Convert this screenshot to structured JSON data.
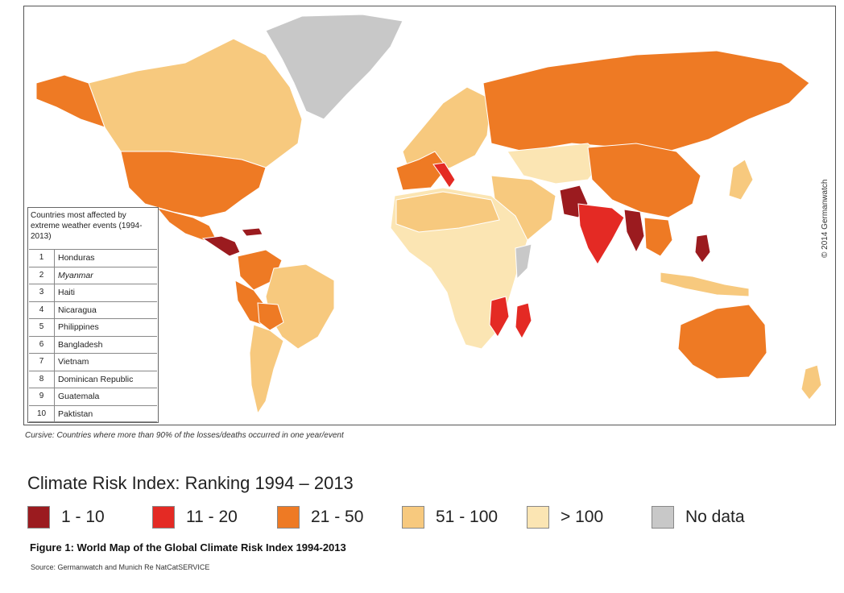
{
  "map": {
    "copyright": "© 2014 Germanwatch",
    "colors": {
      "rank_1_10": "#9b1b1f",
      "rank_11_20": "#e42a24",
      "rank_21_50": "#ee7a24",
      "rank_51_100": "#f7c97e",
      "rank_over_100": "#fbe5b3",
      "no_data": "#c8c8c8",
      "border": "#ffffff"
    }
  },
  "ranking_box": {
    "title": "Countries most affected by extreme weather events (1994-2013)",
    "items": [
      {
        "rank": "1",
        "country": "Honduras",
        "cursive": false
      },
      {
        "rank": "2",
        "country": "Myanmar",
        "cursive": true
      },
      {
        "rank": "3",
        "country": "Haiti",
        "cursive": false
      },
      {
        "rank": "4",
        "country": "Nicaragua",
        "cursive": false
      },
      {
        "rank": "5",
        "country": "Philippines",
        "cursive": false
      },
      {
        "rank": "6",
        "country": "Bangladesh",
        "cursive": false
      },
      {
        "rank": "7",
        "country": "Vietnam",
        "cursive": false
      },
      {
        "rank": "8",
        "country": "Dominican Republic",
        "cursive": false
      },
      {
        "rank": "9",
        "country": "Guatemala",
        "cursive": false
      },
      {
        "rank": "10",
        "country": "Paktistan",
        "cursive": false
      }
    ]
  },
  "cursive_note": "Cursive: Countries where more than 90% of the losses/deaths occurred in one year/event",
  "legend": {
    "title": "Climate Risk Index: Ranking 1994 – 2013",
    "items": [
      {
        "label": "1 - 10",
        "color": "#9b1b1f"
      },
      {
        "label": "11 - 20",
        "color": "#e42a24"
      },
      {
        "label": "21 - 50",
        "color": "#ee7a24"
      },
      {
        "label": "51 - 100",
        "color": "#f7c97e"
      },
      {
        "label": "> 100",
        "color": "#fbe5b3"
      },
      {
        "label": "No data",
        "color": "#c8c8c8"
      }
    ]
  },
  "figure_caption": "Figure 1: World Map of the Global Climate Risk Index 1994-2013",
  "source": "Source: Germanwatch and Munich Re NatCatSERVICE"
}
